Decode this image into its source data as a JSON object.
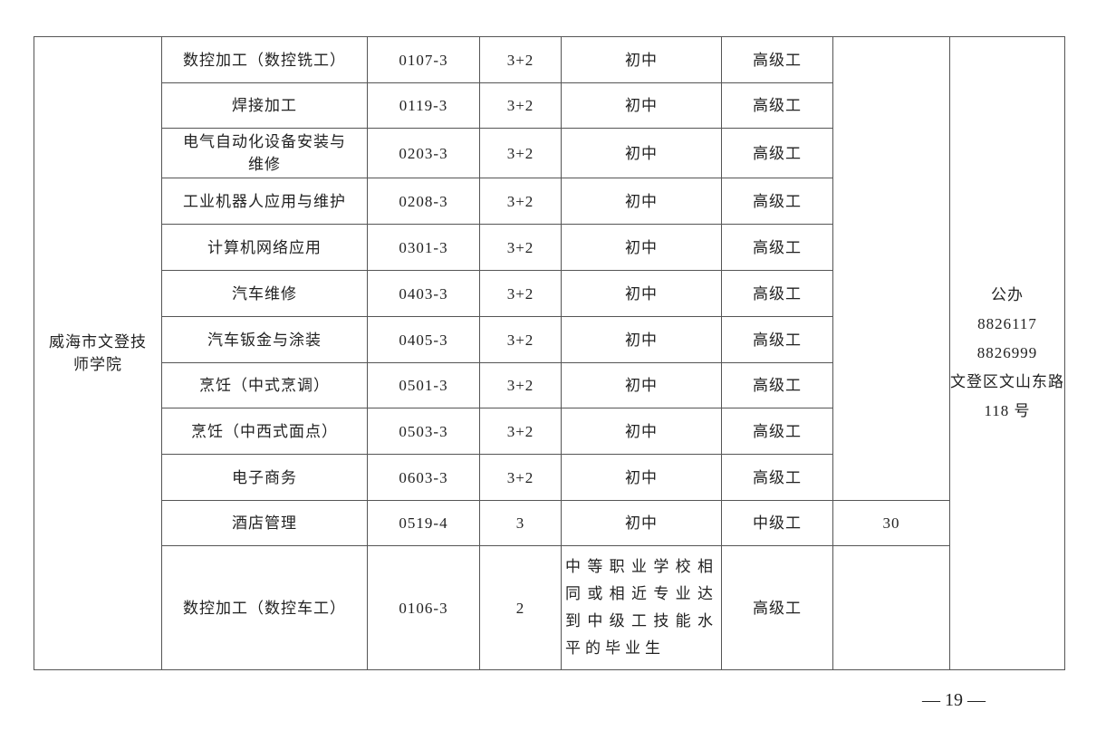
{
  "school": "威海市文登技师学院",
  "contact": {
    "type": "公办",
    "phones": [
      "8826117",
      "8826999"
    ],
    "address": "文登区文山东路 118 号"
  },
  "rows": [
    {
      "major": "数控加工（数控铣工）",
      "code": "0107-3",
      "years": "3+2",
      "requirement": "初中",
      "level": "高级工"
    },
    {
      "major": "焊接加工",
      "code": "0119-3",
      "years": "3+2",
      "requirement": "初中",
      "level": "高级工"
    },
    {
      "major": "电气自动化设备安装与维修",
      "code": "0203-3",
      "years": "3+2",
      "requirement": "初中",
      "level": "高级工"
    },
    {
      "major": "工业机器人应用与维护",
      "code": "0208-3",
      "years": "3+2",
      "requirement": "初中",
      "level": "高级工"
    },
    {
      "major": "计算机网络应用",
      "code": "0301-3",
      "years": "3+2",
      "requirement": "初中",
      "level": "高级工"
    },
    {
      "major": "汽车维修",
      "code": "0403-3",
      "years": "3+2",
      "requirement": "初中",
      "level": "高级工"
    },
    {
      "major": "汽车钣金与涂装",
      "code": "0405-3",
      "years": "3+2",
      "requirement": "初中",
      "level": "高级工"
    },
    {
      "major": "烹饪（中式烹调）",
      "code": "0501-3",
      "years": "3+2",
      "requirement": "初中",
      "level": "高级工"
    },
    {
      "major": "烹饪（中西式面点）",
      "code": "0503-3",
      "years": "3+2",
      "requirement": "初中",
      "level": "高级工"
    },
    {
      "major": "电子商务",
      "code": "0603-3",
      "years": "3+2",
      "requirement": "初中",
      "level": "高级工"
    },
    {
      "major": "酒店管理",
      "code": "0519-4",
      "years": "3",
      "requirement": "初中",
      "level": "中级工",
      "quota": "30"
    },
    {
      "major": "数控加工（数控车工）",
      "code": "0106-3",
      "years": "2",
      "requirement": "中等职业学校相同或相近专业达到中级工技能水平的毕业生",
      "level": "高级工"
    }
  ],
  "page_number": "— 19 —"
}
